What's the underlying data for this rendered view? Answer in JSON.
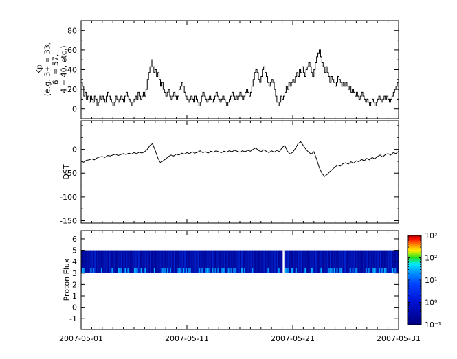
{
  "figure": {
    "background": "#ffffff",
    "line_color": "#000000"
  },
  "xaxis": {
    "grid": false,
    "range_days": [
      0,
      30
    ],
    "major_tick_days": [
      0,
      10,
      20,
      30
    ],
    "minor_tick_every_days": 1,
    "tick_labels": [
      "2007-05-01",
      "2007-05-11",
      "2007-05-21",
      "2007-05-31"
    ]
  },
  "chart_data": [
    {
      "type": "line",
      "name": "kp-index",
      "step": true,
      "ylabel_lines": [
        "Kp",
        "(e.g. 3+ = 33,",
        "6- = 57,",
        "4 = 40, etc.)"
      ],
      "ylim": [
        -10,
        90
      ],
      "yticks": [
        0,
        20,
        40,
        60,
        80
      ],
      "minor_ytick_step": 10,
      "points_per_day": 8,
      "values": [
        27,
        23,
        13,
        17,
        10,
        13,
        7,
        13,
        10,
        7,
        13,
        10,
        3,
        7,
        13,
        10,
        13,
        10,
        7,
        13,
        17,
        13,
        10,
        7,
        3,
        7,
        13,
        10,
        7,
        10,
        13,
        10,
        7,
        13,
        17,
        13,
        10,
        7,
        3,
        7,
        10,
        13,
        10,
        17,
        13,
        10,
        13,
        17,
        13,
        20,
        30,
        37,
        43,
        50,
        43,
        37,
        40,
        33,
        37,
        30,
        23,
        27,
        20,
        17,
        13,
        17,
        20,
        13,
        10,
        13,
        17,
        13,
        10,
        13,
        20,
        23,
        27,
        23,
        17,
        13,
        10,
        7,
        10,
        13,
        10,
        7,
        13,
        10,
        7,
        3,
        7,
        13,
        17,
        13,
        10,
        7,
        10,
        13,
        10,
        7,
        10,
        13,
        17,
        13,
        10,
        7,
        10,
        13,
        10,
        7,
        3,
        7,
        10,
        13,
        17,
        13,
        10,
        13,
        10,
        13,
        17,
        13,
        10,
        13,
        17,
        20,
        17,
        13,
        17,
        23,
        30,
        37,
        40,
        37,
        30,
        27,
        33,
        40,
        43,
        37,
        33,
        27,
        23,
        27,
        30,
        27,
        20,
        13,
        7,
        3,
        7,
        13,
        10,
        13,
        17,
        23,
        20,
        27,
        23,
        27,
        30,
        27,
        33,
        37,
        33,
        40,
        37,
        43,
        37,
        33,
        40,
        43,
        47,
        43,
        37,
        33,
        40,
        47,
        53,
        57,
        60,
        53,
        47,
        43,
        37,
        43,
        37,
        33,
        27,
        33,
        30,
        27,
        23,
        27,
        33,
        30,
        27,
        23,
        27,
        23,
        27,
        23,
        20,
        23,
        17,
        20,
        17,
        13,
        17,
        13,
        10,
        13,
        17,
        13,
        10,
        7,
        10,
        7,
        3,
        7,
        10,
        7,
        3,
        7,
        10,
        13,
        10,
        7,
        10,
        13,
        10,
        13,
        10,
        7,
        10,
        13,
        17,
        20,
        23,
        27
      ]
    },
    {
      "type": "line",
      "name": "dst-index",
      "ylabel": "DST",
      "ylim": [
        -155,
        60
      ],
      "yticks": [
        0,
        -50,
        -100,
        -150
      ],
      "minor_ytick_step": 25,
      "points_per_day": 4,
      "values": [
        -25,
        -27,
        -23,
        -22,
        -20,
        -22,
        -18,
        -16,
        -15,
        -17,
        -13,
        -14,
        -12,
        -10,
        -13,
        -11,
        -9,
        -11,
        -8,
        -10,
        -7,
        -9,
        -6,
        -8,
        -5,
        0,
        8,
        12,
        -2,
        -18,
        -28,
        -24,
        -20,
        -15,
        -12,
        -14,
        -10,
        -12,
        -8,
        -10,
        -7,
        -9,
        -5,
        -8,
        -6,
        -3,
        -7,
        -5,
        -8,
        -4,
        -6,
        -3,
        -5,
        -7,
        -4,
        -6,
        -3,
        -5,
        -2,
        -4,
        -6,
        -3,
        -5,
        -2,
        -4,
        0,
        3,
        -2,
        -5,
        -1,
        -4,
        -7,
        -3,
        -6,
        -2,
        -5,
        4,
        8,
        -4,
        -10,
        -6,
        2,
        12,
        16,
        8,
        0,
        -6,
        -10,
        -5,
        -20,
        -38,
        -50,
        -57,
        -53,
        -47,
        -42,
        -37,
        -33,
        -35,
        -30,
        -28,
        -31,
        -26,
        -29,
        -24,
        -26,
        -21,
        -24,
        -19,
        -22,
        -17,
        -20,
        -15,
        -12,
        -16,
        -11,
        -9,
        -12,
        -7,
        -9,
        -4
      ]
    },
    {
      "type": "heatmap",
      "name": "proton-flux",
      "ylabel": "Proton Flux",
      "ylim": [
        -1.95,
        6.72
      ],
      "yticks": [
        -1,
        0,
        1,
        2,
        3,
        4,
        5,
        6
      ],
      "minor_ytick_step": null,
      "band": {
        "y_min": 3,
        "y_max": 5
      },
      "data_gap_day": 19.05,
      "samples_per_day": 8,
      "intensity_digits": "213142325161423124351621341232516142312435162132425161321423516132425161314252613142325161423124351621341232516142312435162132425161321423516132425161314252613142325161423124351621341232516142312435162132425161321423516132425161314252613142",
      "colorbar": {
        "scale": "log",
        "min": 0.1,
        "max": 1000,
        "tick_labels": [
          "10³",
          "10²",
          "10¹",
          "10⁰",
          "10⁻¹"
        ],
        "gradient": [
          {
            "offset": 0,
            "color": "#b00000"
          },
          {
            "offset": 0.04,
            "color": "#ff1000"
          },
          {
            "offset": 0.11,
            "color": "#ff9000"
          },
          {
            "offset": 0.17,
            "color": "#fff000"
          },
          {
            "offset": 0.25,
            "color": "#20e020"
          },
          {
            "offset": 0.32,
            "color": "#00eaff"
          },
          {
            "offset": 0.42,
            "color": "#0090ff"
          },
          {
            "offset": 0.55,
            "color": "#0040ff"
          },
          {
            "offset": 0.75,
            "color": "#0010d0"
          },
          {
            "offset": 1,
            "color": "#000080"
          }
        ]
      }
    }
  ]
}
